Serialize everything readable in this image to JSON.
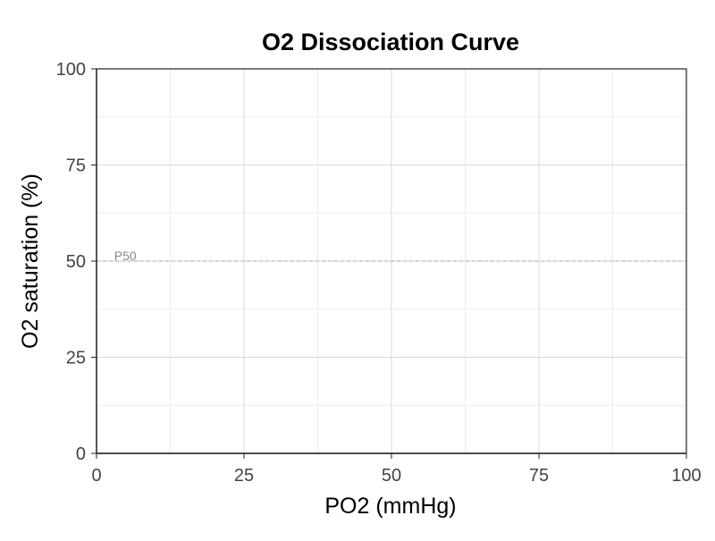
{
  "chart_data": {
    "type": "line",
    "title": "O2 Dissociation Curve",
    "xlabel": "PO2 (mmHg)",
    "ylabel": "O2 saturation (%)",
    "xlim": [
      0,
      100
    ],
    "ylim": [
      0,
      100
    ],
    "x_ticks": [
      0,
      25,
      50,
      75,
      100
    ],
    "y_ticks": [
      0,
      25,
      50,
      75,
      100
    ],
    "x_minor_ticks": [
      12.5,
      37.5,
      62.5,
      87.5
    ],
    "y_minor_ticks": [
      12.5,
      37.5,
      62.5,
      87.5
    ],
    "grid": true,
    "series": [],
    "reference_lines": [
      {
        "orientation": "horizontal",
        "y": 50,
        "label": "P50",
        "label_x": 3,
        "style": "dashed",
        "color": "#aaaaaa"
      }
    ]
  },
  "colors": {
    "grid_major": "#d9d9d9",
    "grid_minor": "#ededed",
    "axis": "#222222",
    "reference": "#aaaaaa"
  }
}
